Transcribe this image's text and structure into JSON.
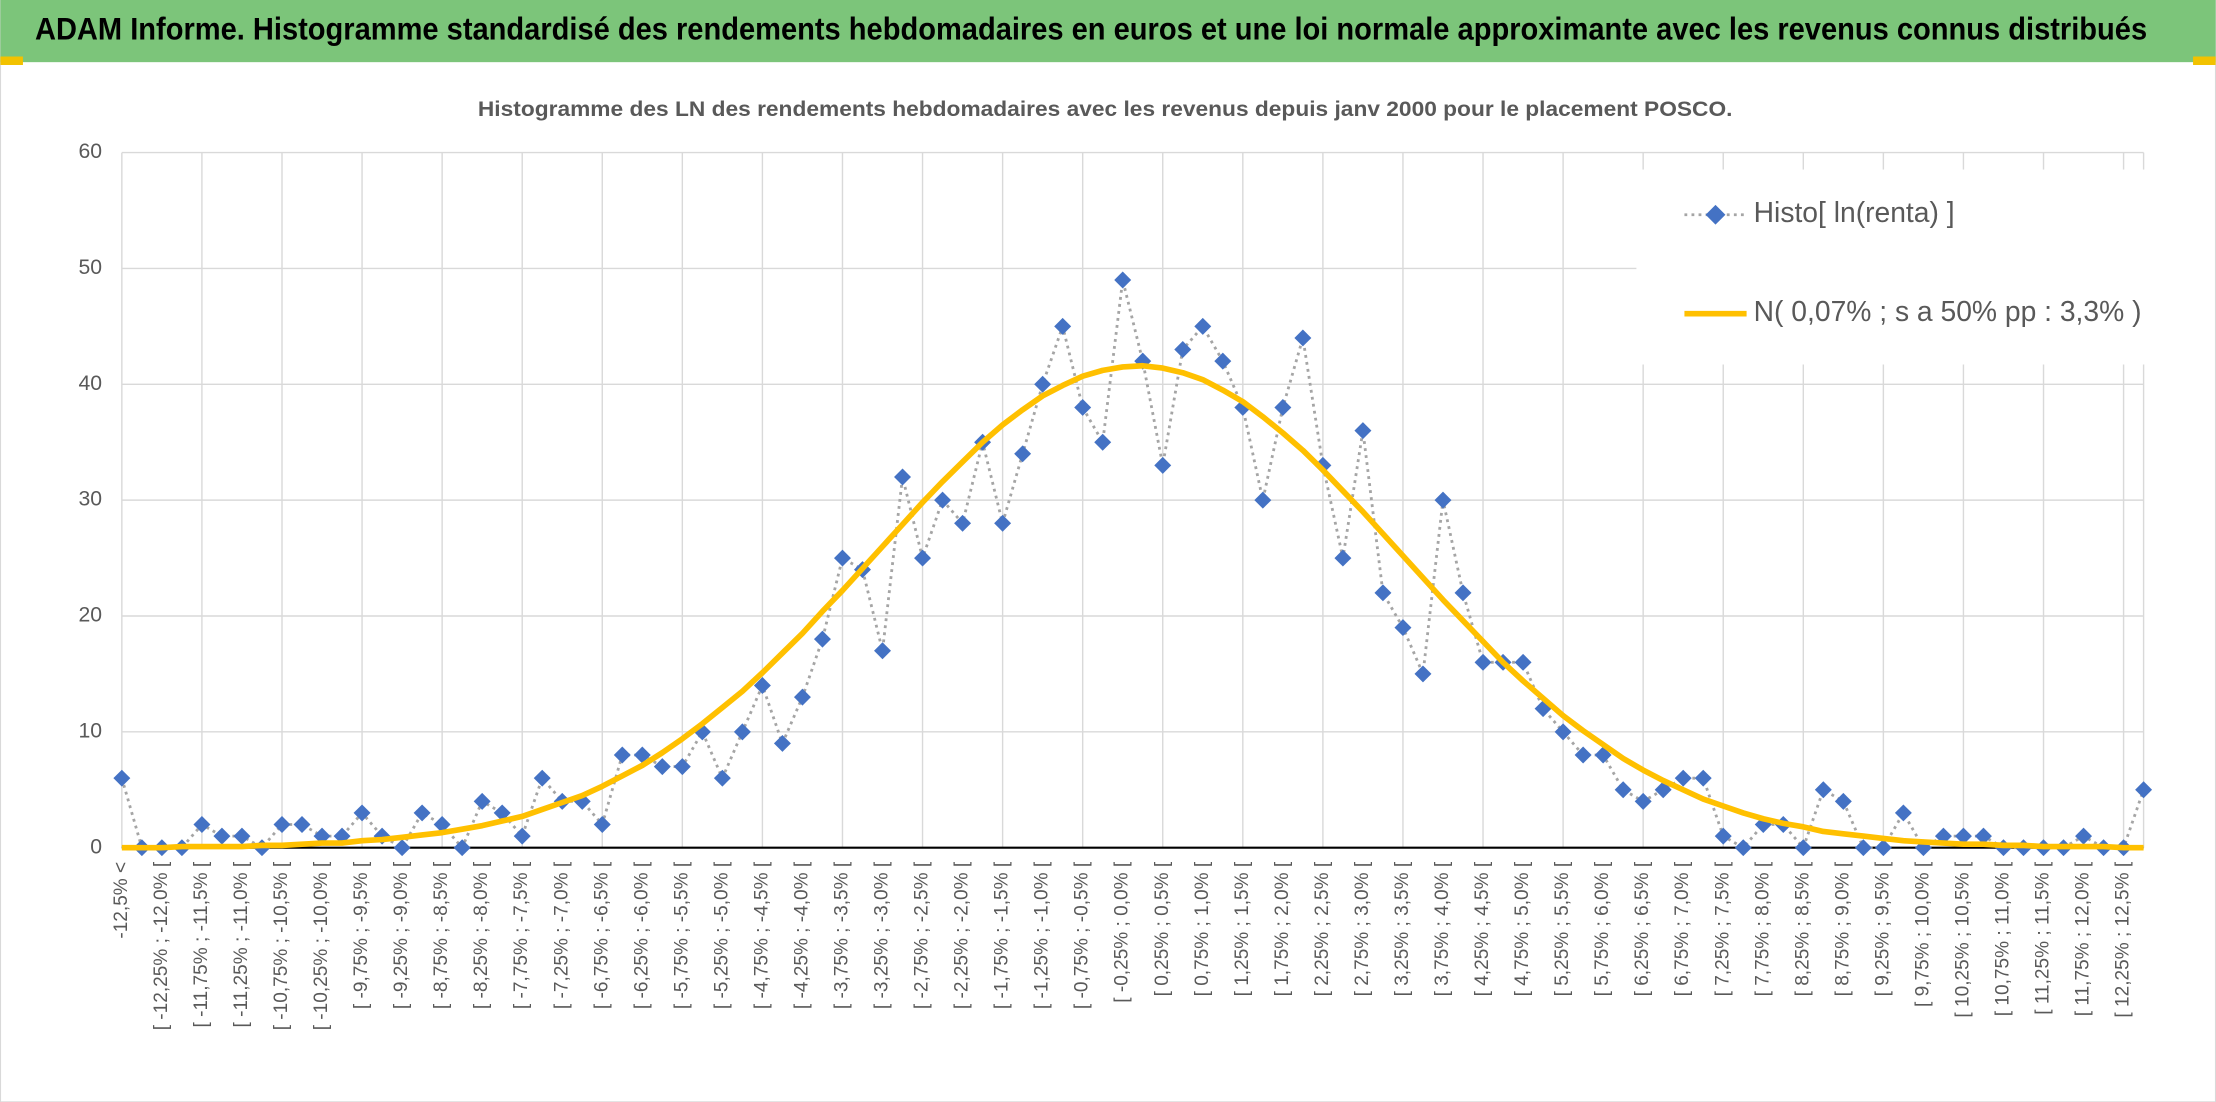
{
  "chart_data": {
    "type": "line",
    "title": "ADAM Informe. Histogramme standardisé des rendements hebdomadaires en euros et une loi normale approximante avec les revenus connus distribués",
    "subtitle": "Histogramme des LN des rendements hebdomadaires avec les revenus depuis janv 2000 pour le placement POSCO.",
    "categories": [
      "-12,5% <",
      null,
      "[ -12,25% ; -12,0% [",
      null,
      "[ -11,75% ; -11,5% [",
      null,
      "[ -11,25% ; -11,0% [",
      null,
      "[ -10,75% ; -10,5% [",
      null,
      "[ -10,25% ; -10,0% [",
      null,
      "[ -9,75% ; -9,5% [",
      null,
      "[ -9,25% ; -9,0% [",
      null,
      "[ -8,75% ; -8,5% [",
      null,
      "[ -8,25% ; -8,0% [",
      null,
      "[ -7,75% ; -7,5% [",
      null,
      "[ -7,25% ; -7,0% [",
      null,
      "[ -6,75% ; -6,5% [",
      null,
      "[ -6,25% ; -6,0% [",
      null,
      "[ -5,75% ; -5,5% [",
      null,
      "[ -5,25% ; -5,0% [",
      null,
      "[ -4,75% ; -4,5% [",
      null,
      "[ -4,25% ; -4,0% [",
      null,
      "[ -3,75% ; -3,5% [",
      null,
      "[ -3,25% ; -3,0% [",
      null,
      "[ -2,75% ; -2,5% [",
      null,
      "[ -2,25% ; -2,0% [",
      null,
      "[ -1,75% ; -1,5% [",
      null,
      "[ -1,25% ; -1,0% [",
      null,
      "[ -0,75% ; -0,5% [",
      null,
      "[ -0,25% ; 0,0% [",
      null,
      "[ 0,25% ; 0,5% [",
      null,
      "[ 0,75% ; 1,0% [",
      null,
      "[ 1,25% ; 1,5% [",
      null,
      "[ 1,75% ; 2,0% [",
      null,
      "[ 2,25% ; 2,5% [",
      null,
      "[ 2,75% ; 3,0% [",
      null,
      "[ 3,25% ; 3,5% [",
      null,
      "[ 3,75% ; 4,0% [",
      null,
      "[ 4,25% ; 4,5% [",
      null,
      "[ 4,75% ; 5,0% [",
      null,
      "[ 5,25% ; 5,5% [",
      null,
      "[ 5,75% ; 6,0% [",
      null,
      "[ 6,25% ; 6,5% [",
      null,
      "[ 6,75% ; 7,0% [",
      null,
      "[ 7,25% ; 7,5% [",
      null,
      "[ 7,75% ; 8,0% [",
      null,
      "[ 8,25% ; 8,5% [",
      null,
      "[ 8,75% ; 9,0% [",
      null,
      "[ 9,25% ; 9,5% [",
      null,
      "[ 9,75% ; 10,0% [",
      null,
      "[ 10,25% ; 10,5% [",
      null,
      "[ 10,75% ; 11,0% [",
      null,
      "[ 11,25% ; 11,5% [",
      null,
      "[ 11,75% ; 12,0% [",
      null,
      "[ 12,25% ; 12,5% [",
      null
    ],
    "series": [
      {
        "name": "Histo[ ln(renta) ]",
        "color": "#4472c4",
        "line_color": "#a5a5a5",
        "marker": "diamond",
        "line_style": "dotted",
        "values": [
          6,
          0,
          0,
          0,
          2,
          1,
          1,
          0,
          2,
          2,
          1,
          1,
          3,
          1,
          0,
          3,
          2,
          0,
          4,
          3,
          1,
          6,
          4,
          4,
          2,
          8,
          8,
          7,
          7,
          10,
          6,
          10,
          14,
          9,
          13,
          18,
          25,
          24,
          17,
          32,
          25,
          30,
          28,
          35,
          28,
          34,
          40,
          45,
          38,
          35,
          49,
          42,
          33,
          43,
          45,
          42,
          38,
          30,
          38,
          44,
          33,
          25,
          36,
          22,
          19,
          15,
          30,
          22,
          16,
          16,
          16,
          12,
          10,
          8,
          8,
          5,
          4,
          5,
          6,
          6,
          1,
          0,
          2,
          2,
          0,
          5,
          4,
          0,
          0,
          3,
          0,
          1,
          1,
          1,
          0,
          0,
          0,
          0,
          1,
          0,
          0,
          5
        ]
      },
      {
        "name": "N( 0,07% ; s a 50% pp : 3,3% )",
        "color": "#ffc000",
        "line_style": "solid",
        "values": [
          0,
          0,
          0,
          0.1,
          0.1,
          0.1,
          0.1,
          0.2,
          0.2,
          0.3,
          0.4,
          0.4,
          0.6,
          0.7,
          0.9,
          1.1,
          1.3,
          1.6,
          1.9,
          2.3,
          2.7,
          3.3,
          3.9,
          4.5,
          5.3,
          6.2,
          7.1,
          8.2,
          9.4,
          10.7,
          12.1,
          13.5,
          15.1,
          16.8,
          18.5,
          20.4,
          22.2,
          24.1,
          26.0,
          27.9,
          29.8,
          31.6,
          33.3,
          35.0,
          36.5,
          37.8,
          39.0,
          39.9,
          40.7,
          41.2,
          41.5,
          41.6,
          41.4,
          41.0,
          40.4,
          39.5,
          38.5,
          37.2,
          35.8,
          34.3,
          32.6,
          30.8,
          29.0,
          27.1,
          25.2,
          23.3,
          21.4,
          19.6,
          17.8,
          16.0,
          14.4,
          12.9,
          11.4,
          10.1,
          8.9,
          7.7,
          6.7,
          5.8,
          5.0,
          4.2,
          3.6,
          3.0,
          2.5,
          2.1,
          1.8,
          1.4,
          1.2,
          1.0,
          0.8,
          0.6,
          0.5,
          0.4,
          0.3,
          0.3,
          0.2,
          0.2,
          0.1,
          0.1,
          0.1,
          0.1,
          0.0,
          0.0
        ]
      }
    ],
    "ylim": [
      0,
      60
    ],
    "yticks": [
      0,
      10,
      20,
      30,
      40,
      50,
      60
    ],
    "grid": true,
    "legend": "upper right"
  }
}
